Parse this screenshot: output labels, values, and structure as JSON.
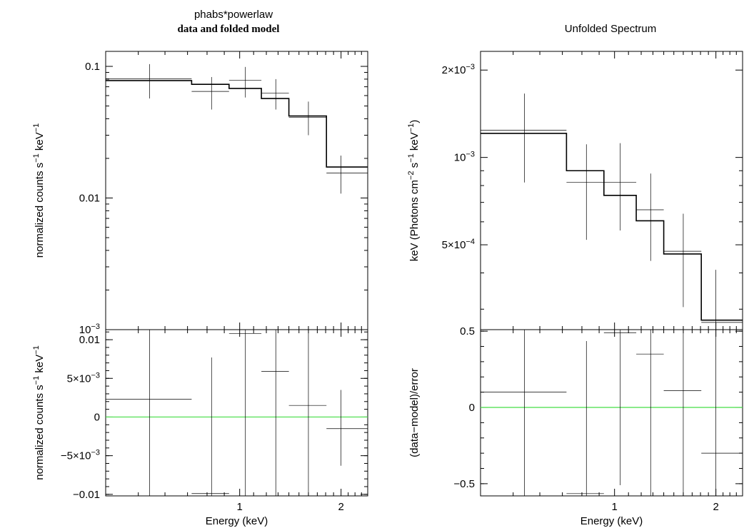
{
  "figure": {
    "left_title_line1": "phabs*powerlaw",
    "left_title_line2": "data and folded model",
    "right_title": "Unfolded Spectrum"
  },
  "colors": {
    "residual_zero_line": "#44dd44",
    "ink": "#000000"
  },
  "chart_data": [
    {
      "id": "left-top",
      "type": "line",
      "description_role": "data and folded model",
      "xscale": "log",
      "yscale": "log",
      "xlim": [
        0.4,
        2.4
      ],
      "ylim": [
        0.001,
        0.13
      ],
      "xticks": [
        {
          "v": 1,
          "label": "1"
        },
        {
          "v": 2,
          "label": "2"
        }
      ],
      "yticks": [
        {
          "v": 0.1,
          "parts": [
            {
              "t": "0.1"
            }
          ]
        },
        {
          "v": 0.01,
          "parts": [
            {
              "t": "0.01"
            }
          ]
        },
        {
          "v": 0.001,
          "parts": [
            {
              "t": "10"
            },
            {
              "t": "−3",
              "sup": true
            }
          ]
        }
      ],
      "show_xtick_labels": false,
      "ylabel_parts": [
        {
          "t": "normalized counts s"
        },
        {
          "t": "−1",
          "sup": true
        },
        {
          "t": " keV"
        },
        {
          "t": "−1",
          "sup": true
        }
      ],
      "xlabel": "",
      "series": [
        {
          "kind": "data",
          "points": [
            {
              "x": 0.54,
              "y": 0.0805,
              "xlo": 0.4,
              "xhi": 0.72,
              "ylo": 0.057,
              "yhi": 0.104
            },
            {
              "x": 0.825,
              "y": 0.0645,
              "xlo": 0.72,
              "xhi": 0.93,
              "ylo": 0.047,
              "yhi": 0.083
            },
            {
              "x": 1.04,
              "y": 0.0785,
              "xlo": 0.93,
              "xhi": 1.16,
              "ylo": 0.058,
              "yhi": 0.099
            },
            {
              "x": 1.28,
              "y": 0.0625,
              "xlo": 1.16,
              "xhi": 1.4,
              "ylo": 0.047,
              "yhi": 0.08
            },
            {
              "x": 1.6,
              "y": 0.041,
              "xlo": 1.4,
              "xhi": 1.81,
              "ylo": 0.03,
              "yhi": 0.054
            },
            {
              "x": 2.0,
              "y": 0.0155,
              "xlo": 1.81,
              "xhi": 2.4,
              "ylo": 0.0108,
              "yhi": 0.021
            }
          ]
        },
        {
          "kind": "model",
          "steps": [
            {
              "xlo": 0.4,
              "xhi": 0.72,
              "y": 0.078
            },
            {
              "xlo": 0.72,
              "xhi": 0.93,
              "y": 0.073
            },
            {
              "xlo": 0.93,
              "xhi": 1.16,
              "y": 0.068
            },
            {
              "xlo": 1.16,
              "xhi": 1.4,
              "y": 0.057
            },
            {
              "xlo": 1.4,
              "xhi": 1.81,
              "y": 0.042
            },
            {
              "xlo": 1.81,
              "xhi": 2.4,
              "y": 0.0172
            }
          ]
        }
      ]
    },
    {
      "id": "left-bottom",
      "type": "scatter",
      "description_role": "residuals",
      "xscale": "log",
      "yscale": "linear",
      "xlim": [
        0.4,
        2.4
      ],
      "ylim": [
        -0.0102,
        0.0113
      ],
      "xticks": [
        {
          "v": 1,
          "label": "1"
        },
        {
          "v": 2,
          "label": "2"
        }
      ],
      "yticks": [
        {
          "v": 0.01,
          "parts": [
            {
              "t": "0.01"
            }
          ]
        },
        {
          "v": 0.005,
          "parts": [
            {
              "t": "5×10"
            },
            {
              "t": "−3",
              "sup": true
            }
          ]
        },
        {
          "v": 0,
          "parts": [
            {
              "t": "0"
            }
          ]
        },
        {
          "v": -0.005,
          "parts": [
            {
              "t": "−5×10"
            },
            {
              "t": "−3",
              "sup": true
            }
          ]
        },
        {
          "v": -0.01,
          "parts": [
            {
              "t": "−0.01"
            }
          ]
        }
      ],
      "show_xtick_labels": true,
      "ylabel_parts": [
        {
          "t": "normalized counts s"
        },
        {
          "t": "−1",
          "sup": true
        },
        {
          "t": " keV"
        },
        {
          "t": "−1",
          "sup": true
        }
      ],
      "xlabel": "Energy (keV)",
      "zero_line": true,
      "series": [
        {
          "kind": "data",
          "points": [
            {
              "x": 0.54,
              "y": 0.0023,
              "xlo": 0.4,
              "xhi": 0.72,
              "ylo": -0.0102,
              "yhi": 0.0113
            },
            {
              "x": 0.825,
              "y": -0.0099,
              "xlo": 0.72,
              "xhi": 0.93,
              "ylo": -0.0102,
              "yhi": 0.0077
            },
            {
              "x": 1.04,
              "y": 0.0108,
              "xlo": 0.93,
              "xhi": 1.16,
              "ylo": -0.0102,
              "yhi": 0.0113
            },
            {
              "x": 1.28,
              "y": 0.0059,
              "xlo": 1.16,
              "xhi": 1.4,
              "ylo": -0.0102,
              "yhi": 0.0113
            },
            {
              "x": 1.6,
              "y": 0.0015,
              "xlo": 1.4,
              "xhi": 1.81,
              "ylo": -0.0102,
              "yhi": 0.0113
            },
            {
              "x": 2.0,
              "y": -0.0015,
              "xlo": 1.81,
              "xhi": 2.4,
              "ylo": -0.0063,
              "yhi": 0.0035
            }
          ]
        }
      ]
    },
    {
      "id": "right-top",
      "type": "line",
      "description_role": "unfolded spectrum",
      "xscale": "log",
      "yscale": "log",
      "xlim": [
        0.4,
        2.4
      ],
      "ylim": [
        0.000255,
        0.00232
      ],
      "xticks": [
        {
          "v": 1,
          "label": "1"
        },
        {
          "v": 2,
          "label": "2"
        }
      ],
      "yticks": [
        {
          "v": 0.002,
          "parts": [
            {
              "t": "2×10"
            },
            {
              "t": "−3",
              "sup": true
            }
          ]
        },
        {
          "v": 0.001,
          "parts": [
            {
              "t": "10"
            },
            {
              "t": "−3",
              "sup": true
            }
          ]
        },
        {
          "v": 0.0005,
          "parts": [
            {
              "t": "5×10"
            },
            {
              "t": "−4",
              "sup": true
            }
          ]
        }
      ],
      "minor_yticks": [
        0.0003,
        0.0004,
        0.0006,
        0.0007,
        0.0008,
        0.0009
      ],
      "show_xtick_labels": false,
      "ylabel_parts": [
        {
          "t": "keV (Photons cm"
        },
        {
          "t": "−2",
          "sup": true
        },
        {
          "t": " s"
        },
        {
          "t": "−1",
          "sup": true
        },
        {
          "t": " keV"
        },
        {
          "t": "−1",
          "sup": true
        },
        {
          "t": ")"
        }
      ],
      "xlabel": "",
      "series": [
        {
          "kind": "data",
          "points": [
            {
              "x": 0.54,
              "y": 0.00124,
              "xlo": 0.4,
              "xhi": 0.72,
              "ylo": 0.00082,
              "yhi": 0.00166
            },
            {
              "x": 0.825,
              "y": 0.00082,
              "xlo": 0.72,
              "xhi": 0.93,
              "ylo": 0.00052,
              "yhi": 0.00111
            },
            {
              "x": 1.04,
              "y": 0.00082,
              "xlo": 0.93,
              "xhi": 1.16,
              "ylo": 0.00056,
              "yhi": 0.00112
            },
            {
              "x": 1.28,
              "y": 0.00066,
              "xlo": 1.16,
              "xhi": 1.4,
              "ylo": 0.00044,
              "yhi": 0.00088
            },
            {
              "x": 1.6,
              "y": 0.000475,
              "xlo": 1.4,
              "xhi": 1.81,
              "ylo": 0.000305,
              "yhi": 0.00064
            },
            {
              "x": 2.0,
              "y": 0.00027,
              "xlo": 1.81,
              "xhi": 2.4,
              "ylo": 0.000255,
              "yhi": 0.00041
            }
          ]
        },
        {
          "kind": "model",
          "steps": [
            {
              "xlo": 0.4,
              "xhi": 0.72,
              "y": 0.00121
            },
            {
              "xlo": 0.72,
              "xhi": 0.93,
              "y": 0.0009
            },
            {
              "xlo": 0.93,
              "xhi": 1.16,
              "y": 0.00074
            },
            {
              "xlo": 1.16,
              "xhi": 1.4,
              "y": 0.000605
            },
            {
              "xlo": 1.4,
              "xhi": 1.81,
              "y": 0.000465
            },
            {
              "xlo": 1.81,
              "xhi": 2.4,
              "y": 0.000275
            }
          ]
        }
      ]
    },
    {
      "id": "right-bottom",
      "type": "scatter",
      "description_role": "residuals (data-model)/error",
      "xscale": "log",
      "yscale": "linear",
      "xlim": [
        0.4,
        2.4
      ],
      "ylim": [
        -0.58,
        0.51
      ],
      "xticks": [
        {
          "v": 1,
          "label": "1"
        },
        {
          "v": 2,
          "label": "2"
        }
      ],
      "yticks": [
        {
          "v": 0.5,
          "parts": [
            {
              "t": "0.5"
            }
          ]
        },
        {
          "v": 0,
          "parts": [
            {
              "t": "0"
            }
          ]
        },
        {
          "v": -0.5,
          "parts": [
            {
              "t": "−0.5"
            }
          ]
        }
      ],
      "show_xtick_labels": true,
      "ylabel_parts": [
        {
          "t": "(data−model)/error"
        }
      ],
      "xlabel": "Energy (keV)",
      "zero_line": true,
      "series": [
        {
          "kind": "data",
          "points": [
            {
              "x": 0.54,
              "y": 0.1,
              "xlo": 0.4,
              "xhi": 0.72,
              "ylo": -0.58,
              "yhi": 0.51
            },
            {
              "x": 0.825,
              "y": -0.565,
              "xlo": 0.72,
              "xhi": 0.93,
              "ylo": -0.58,
              "yhi": 0.435
            },
            {
              "x": 1.04,
              "y": 0.49,
              "xlo": 0.93,
              "xhi": 1.16,
              "ylo": -0.51,
              "yhi": 0.51
            },
            {
              "x": 1.28,
              "y": 0.35,
              "xlo": 1.16,
              "xhi": 1.4,
              "ylo": -0.58,
              "yhi": 0.51
            },
            {
              "x": 1.6,
              "y": 0.11,
              "xlo": 1.4,
              "xhi": 1.81,
              "ylo": -0.58,
              "yhi": 0.51
            },
            {
              "x": 2.0,
              "y": -0.3,
              "xlo": 1.81,
              "xhi": 2.4,
              "ylo": -0.58,
              "yhi": 0.51
            }
          ]
        }
      ]
    }
  ]
}
